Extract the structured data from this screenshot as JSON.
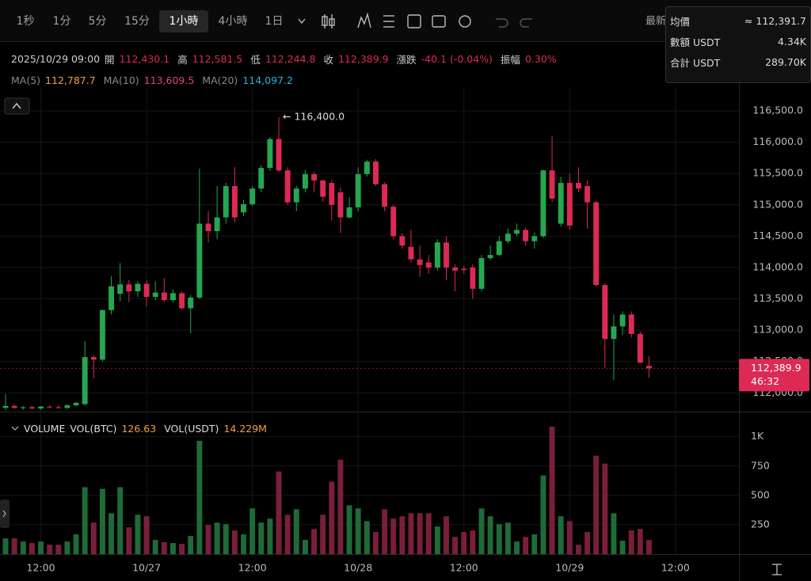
{
  "toolbar": {
    "intervals": [
      "1秒",
      "1分",
      "5分",
      "15分",
      "1小時",
      "4小時",
      "1日"
    ],
    "selected": 4,
    "right_label": "最新"
  },
  "info": {
    "datetime": "2025/10/29 09:00",
    "fields": [
      {
        "label": "開",
        "value": "112,430.1"
      },
      {
        "label": "高",
        "value": "112,581.5"
      },
      {
        "label": "低",
        "value": "112,244.8"
      },
      {
        "label": "收",
        "value": "112,389.9"
      },
      {
        "label": "漲跌",
        "value": "-40.1 (-0.04%)"
      },
      {
        "label": "振幅",
        "value": "0.30%"
      }
    ]
  },
  "ma": [
    {
      "label": "MA(5)",
      "value": "112,787.7",
      "color": "#f0a03c"
    },
    {
      "label": "MA(10)",
      "value": "113,609.5",
      "color": "#e0457a"
    },
    {
      "label": "MA(20)",
      "value": "114,097.2",
      "color": "#2bb3d6"
    }
  ],
  "tooltip": [
    {
      "label": "均價",
      "value": "≈ 112,391.7"
    },
    {
      "label": "數額 USDT",
      "value": "4.34K"
    },
    {
      "label": "合計 USDT",
      "value": "289.70K"
    }
  ],
  "last_price": {
    "label": "112,389.9",
    "countdown": "46:32"
  },
  "chart_data": [
    {
      "type": "candlestick",
      "up_color": "#25a750",
      "down_color": "#dc2a55",
      "grid": true,
      "annotation": "← 116,400.0",
      "xlim": [
        -0.63,
        83.2
      ],
      "xticks": [
        {
          "value": 4,
          "label": "12:00"
        },
        {
          "value": 16,
          "label": "10/27"
        },
        {
          "value": 28,
          "label": "12:00"
        },
        {
          "value": 40,
          "label": "10/28"
        },
        {
          "value": 52,
          "label": "12:00"
        },
        {
          "value": 64,
          "label": "10/29"
        },
        {
          "value": 76,
          "label": "12:00"
        }
      ],
      "ylim": [
        111700,
        116880
      ],
      "yticks": [
        {
          "value": 112000,
          "label": "112,000.0"
        },
        {
          "value": 112500,
          "label": "112,500.0"
        },
        {
          "value": 113000,
          "label": "113,000.0"
        },
        {
          "value": 113500,
          "label": "113,500.0"
        },
        {
          "value": 114000,
          "label": "114,000.0"
        },
        {
          "value": 114500,
          "label": "114,500.0"
        },
        {
          "value": 115000,
          "label": "115,000.0"
        },
        {
          "value": 115500,
          "label": "115,500.0"
        },
        {
          "value": 116000,
          "label": "116,000.0"
        },
        {
          "value": 116500,
          "label": "116,500.0"
        }
      ],
      "x": [
        0,
        1,
        2,
        3,
        4,
        5,
        6,
        7,
        8,
        9,
        10,
        11,
        12,
        13,
        14,
        15,
        16,
        17,
        18,
        19,
        20,
        21,
        22,
        23,
        24,
        25,
        26,
        27,
        28,
        29,
        30,
        31,
        32,
        33,
        34,
        35,
        36,
        37,
        38,
        39,
        40,
        41,
        42,
        43,
        44,
        45,
        46,
        47,
        48,
        49,
        50,
        51,
        52,
        53,
        54,
        55,
        56,
        57,
        58,
        59,
        60,
        61,
        62,
        63,
        64,
        65,
        66,
        67,
        68,
        69,
        70,
        71,
        72,
        73
      ],
      "open": [
        111760,
        111790,
        111760,
        111770,
        111750,
        111780,
        111770,
        111760,
        111800,
        111820,
        112570,
        112530,
        113320,
        113580,
        113730,
        113620,
        113740,
        113530,
        113600,
        113480,
        113590,
        113350,
        113520,
        114700,
        114580,
        114800,
        115300,
        114880,
        115010,
        115260,
        115590,
        116050,
        115550,
        115040,
        115260,
        115490,
        115390,
        115350,
        115200,
        114800,
        114960,
        115490,
        115690,
        115330,
        114970,
        114500,
        114330,
        114130,
        114080,
        114000,
        114400,
        114000,
        113980,
        114000,
        113660,
        114150,
        114200,
        114420,
        114540,
        114600,
        114420,
        114500,
        115550,
        114700,
        115350,
        115350,
        115300,
        115040,
        113720,
        112860,
        113060,
        113250,
        112940,
        112430.1
      ],
      "high": [
        111980,
        111820,
        111790,
        111800,
        111790,
        111800,
        111800,
        111820,
        111860,
        112820,
        112600,
        113330,
        113860,
        114070,
        113800,
        113780,
        113800,
        113780,
        113830,
        113650,
        113620,
        113560,
        115580,
        114900,
        115300,
        115350,
        115600,
        115080,
        115300,
        115640,
        116080,
        116400,
        115600,
        115300,
        115560,
        115530,
        115400,
        115400,
        115280,
        115120,
        115600,
        115720,
        115730,
        115360,
        115000,
        114550,
        114600,
        114350,
        114200,
        114450,
        114500,
        114050,
        114020,
        114050,
        114200,
        114350,
        114500,
        114620,
        114700,
        114640,
        114560,
        115560,
        116100,
        115450,
        115500,
        115600,
        115400,
        115060,
        113750,
        113250,
        113300,
        113300,
        112980,
        112581.5
      ],
      "low": [
        111720,
        111740,
        111730,
        111740,
        111730,
        111750,
        111750,
        111740,
        111780,
        111800,
        112230,
        112500,
        113250,
        113460,
        113450,
        113530,
        113380,
        113480,
        113450,
        113440,
        113330,
        112950,
        113500,
        114400,
        114450,
        114700,
        114720,
        114820,
        114980,
        115200,
        115540,
        115520,
        115000,
        114900,
        115200,
        115200,
        115050,
        114750,
        114550,
        114780,
        114900,
        115450,
        115300,
        114900,
        114450,
        114300,
        114080,
        113850,
        113900,
        113950,
        113800,
        113620,
        113900,
        113500,
        113620,
        114120,
        114180,
        114380,
        114500,
        114350,
        114300,
        114470,
        115050,
        114650,
        114600,
        115200,
        114620,
        113700,
        112400,
        112200,
        112920,
        112880,
        112470,
        112244.8
      ],
      "close": [
        111790,
        111760,
        111770,
        111750,
        111780,
        111770,
        111760,
        111800,
        111840,
        112570,
        112530,
        113320,
        113700,
        113730,
        113620,
        113740,
        113530,
        113600,
        113480,
        113590,
        113350,
        113520,
        114700,
        114580,
        114800,
        115300,
        114800,
        115010,
        115260,
        115590,
        116050,
        115550,
        115040,
        115260,
        115490,
        115390,
        115130,
        115000,
        114800,
        114960,
        115490,
        115690,
        115330,
        114970,
        114500,
        114350,
        114130,
        114040,
        114000,
        114400,
        114000,
        113950,
        113960,
        113660,
        114150,
        114200,
        114420,
        114540,
        114600,
        114420,
        114500,
        115550,
        115100,
        115350,
        114670,
        115260,
        115040,
        113720,
        112860,
        113060,
        113250,
        112940,
        112480,
        112389.9
      ]
    },
    {
      "type": "bar",
      "title": "VOLUME",
      "up_color": "#1f6b38",
      "down_color": "#7a1f3a",
      "legend": [
        {
          "name": "VOL(BTC)",
          "value": "126.63"
        },
        {
          "name": "VOL(USDT)",
          "value": "14.229M"
        }
      ],
      "ylim": [
        0,
        1200
      ],
      "yticks": [
        250,
        500,
        750,
        {
          "value": 1000,
          "label": "1K"
        }
      ],
      "values": [
        134,
        134,
        107,
        94,
        107,
        80,
        80,
        107,
        168,
        570,
        268,
        556,
        348,
        570,
        228,
        335,
        322,
        121,
        101,
        94,
        87,
        154,
        965,
        248,
        268,
        255,
        201,
        168,
        389,
        268,
        302,
        704,
        335,
        382,
        121,
        214,
        335,
        617,
        804,
        416,
        389,
        281,
        188,
        382,
        302,
        322,
        348,
        348,
        348,
        235,
        322,
        147,
        188,
        201,
        389,
        322,
        255,
        268,
        107,
        147,
        168,
        670,
        1085,
        322,
        281,
        80,
        188,
        838,
        771,
        348,
        114,
        201,
        214,
        121
      ]
    }
  ]
}
